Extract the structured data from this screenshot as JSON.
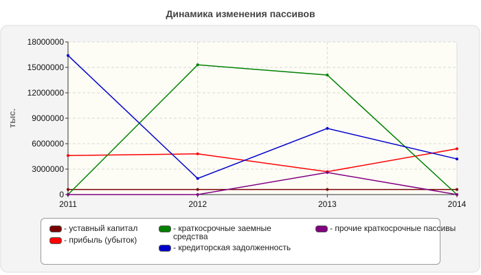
{
  "chart_data": {
    "type": "line",
    "title": "Динамика изменения пассивов",
    "ylabel": "тыс.",
    "xlabel": "",
    "x": [
      "2011",
      "2012",
      "2013",
      "2014"
    ],
    "ylim": [
      0,
      18000000
    ],
    "yticks": [
      "0",
      "3000000",
      "6000000",
      "9000000",
      "12000000",
      "15000000",
      "18000000"
    ],
    "grid": true,
    "legend_position": "bottom",
    "series": [
      {
        "name": "- уставный капитал",
        "color": "#7a0000",
        "values": [
          600000,
          600000,
          600000,
          600000
        ]
      },
      {
        "name": "- прибыль (убыток)",
        "color": "#ff0000",
        "values": [
          4600000,
          4800000,
          2700000,
          5400000
        ]
      },
      {
        "name": "- краткосрочные заемные средства",
        "color": "#008000",
        "values": [
          0,
          15300000,
          14100000,
          0
        ]
      },
      {
        "name": "- кредиторская задолженность",
        "color": "#0000cc",
        "values": [
          16400000,
          1900000,
          7800000,
          4200000
        ]
      },
      {
        "name": "- прочие краткосрочные пассивы",
        "color": "#800080",
        "values": [
          0,
          0,
          2600000,
          0
        ]
      }
    ]
  }
}
